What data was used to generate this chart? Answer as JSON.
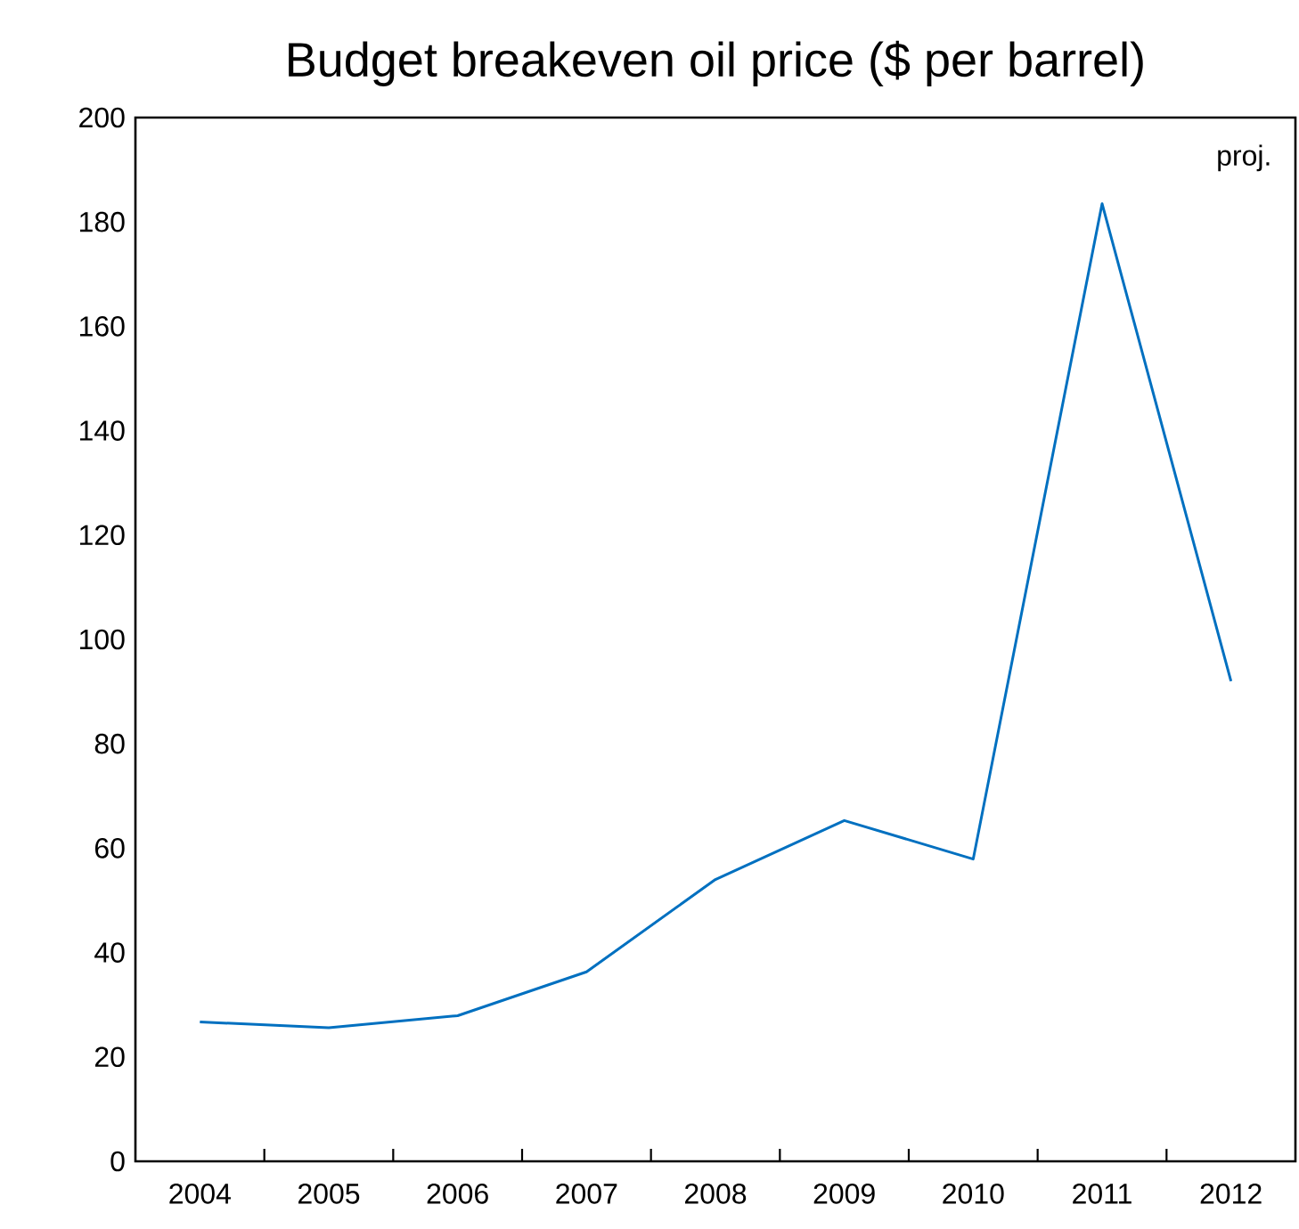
{
  "chart_data": {
    "type": "line",
    "title": "Budget breakeven oil price ($ per barrel)",
    "categories": [
      "2004",
      "2005",
      "2006",
      "2007",
      "2008",
      "2009",
      "2010",
      "2011",
      "2012"
    ],
    "series": [
      {
        "color": "#0070c0",
        "values": [
          26.7,
          25.6,
          27.9,
          36.3,
          54,
          65.3,
          57.9,
          183.5,
          92
        ]
      }
    ],
    "ylim": [
      0,
      200
    ],
    "yticks": [
      0,
      20,
      40,
      60,
      80,
      100,
      120,
      140,
      160,
      180,
      200
    ],
    "marker": "none",
    "line_style": "solid",
    "annotations": [
      "proj."
    ]
  }
}
